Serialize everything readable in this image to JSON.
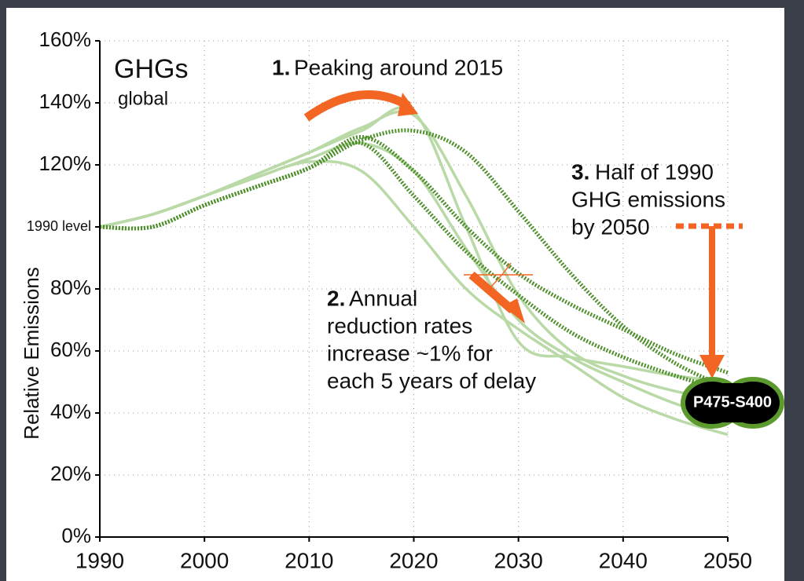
{
  "chart_data": {
    "type": "line",
    "annotations": {
      "title": "GHGs",
      "subtitle": "global",
      "a1_num": "1.",
      "a1_text": "Peaking around 2015",
      "a2_num": "2.",
      "a2_lines": [
        "Annual",
        "reduction rates",
        "increase ~1% for",
        "each 5 years of delay"
      ],
      "a3_num": "3.",
      "a3_lines": [
        "Half of 1990",
        "GHG emissions",
        "by 2050"
      ],
      "badge": "P475-S400"
    },
    "ylabel": "Relative Emissions",
    "x": [
      1990,
      1995,
      2000,
      2005,
      2010,
      2015,
      2020,
      2025,
      2030,
      2035,
      2040,
      2045,
      2050
    ],
    "xlim": [
      1990,
      2050
    ],
    "xticks": [
      1990,
      2000,
      2010,
      2020,
      2030,
      2040,
      2050
    ],
    "ylim": [
      0,
      160
    ],
    "yticks": [
      {
        "value": 0,
        "label": "0%"
      },
      {
        "value": 20,
        "label": "20%"
      },
      {
        "value": 40,
        "label": "40%"
      },
      {
        "value": 60,
        "label": "60%"
      },
      {
        "value": 80,
        "label": "80%"
      },
      {
        "value": 100,
        "label": "1990 level"
      },
      {
        "value": 120,
        "label": "120%"
      },
      {
        "value": 140,
        "label": "140%"
      },
      {
        "value": 160,
        "label": "160%"
      }
    ],
    "grid": true,
    "series": [
      {
        "color": "#b9d9a6",
        "style": "solid",
        "values": [
          100,
          104,
          110,
          116,
          121,
          118,
          100,
          80,
          67,
          56,
          45,
          38,
          33
        ]
      },
      {
        "color": "#b9d9a6",
        "style": "solid",
        "values": [
          100,
          104,
          110,
          116,
          122,
          127,
          118,
          93,
          70,
          58,
          50,
          43,
          38
        ]
      },
      {
        "color": "#b9d9a6",
        "style": "solid",
        "values": [
          100,
          104,
          110,
          117,
          124,
          132,
          136,
          110,
          78,
          60,
          52,
          47,
          44
        ]
      },
      {
        "color": "#b9d9a6",
        "style": "solid",
        "values": [
          100,
          104,
          110,
          117,
          124,
          131,
          137,
          100,
          63,
          58,
          55,
          52,
          50
        ]
      },
      {
        "color": "#4f8f2c",
        "style": "dotted",
        "values": [
          100,
          100,
          107,
          113,
          119,
          128,
          131,
          124,
          105,
          85,
          68,
          56,
          48
        ]
      },
      {
        "color": "#4f8f2c",
        "style": "dotted",
        "values": [
          100,
          100,
          107,
          113,
          119,
          129,
          118,
          100,
          85,
          75,
          67,
          59,
          53
        ]
      },
      {
        "color": "#4f8f2c",
        "style": "dotted",
        "values": [
          100,
          100,
          107,
          113,
          119,
          127,
          110,
          92,
          78,
          66,
          58,
          52,
          47
        ]
      }
    ]
  }
}
